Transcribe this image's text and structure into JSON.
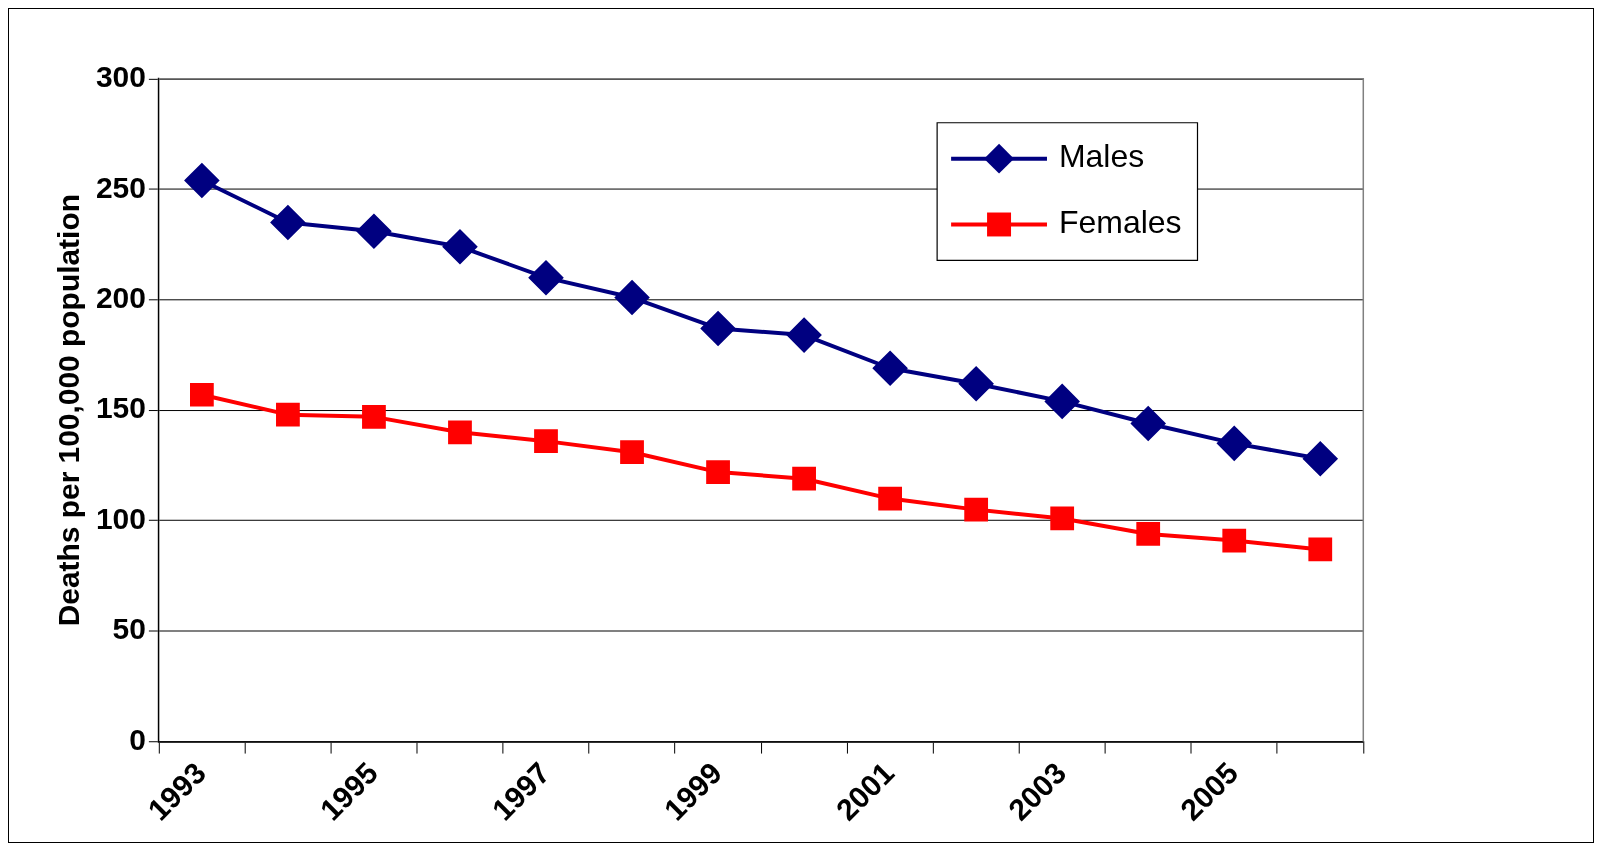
{
  "chart_data": {
    "type": "line",
    "ylabel": "Deaths per 100,000 population",
    "categories": [
      "1993",
      null,
      "1995",
      null,
      "1997",
      null,
      "1999",
      null,
      "2001",
      null,
      "2003",
      null,
      "2005",
      null
    ],
    "series": [
      {
        "name": "Males",
        "color": "#000080",
        "marker": "diamond",
        "values": [
          254,
          235,
          231,
          224,
          210,
          201,
          187,
          184,
          169,
          162,
          154,
          144,
          135,
          128
        ]
      },
      {
        "name": "Females",
        "color": "#ff0000",
        "marker": "square",
        "values": [
          157,
          148,
          147,
          140,
          136,
          131,
          122,
          119,
          110,
          105,
          101,
          94,
          91,
          87
        ]
      }
    ],
    "ylim": [
      0,
      300
    ],
    "yticks": [
      0,
      50,
      100,
      150,
      200,
      250,
      300
    ],
    "grid": "y",
    "legend": "top right",
    "line_style": "solid"
  }
}
